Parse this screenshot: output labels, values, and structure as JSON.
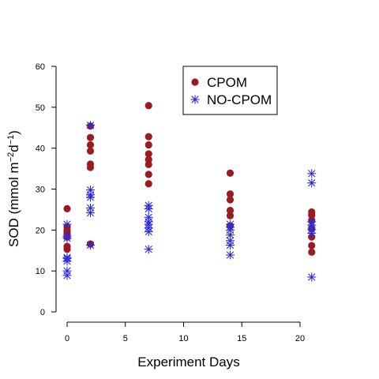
{
  "chart_data": {
    "type": "scatter",
    "title": "",
    "xlabel": "Experiment Days",
    "ylabel": {
      "prefix": "SOD (mmol m",
      "sup1": "−2",
      "mid": "d",
      "sup2": "−1",
      "suffix": ")"
    },
    "xlim": [
      0,
      20
    ],
    "ylim": [
      0,
      60
    ],
    "xticks": [
      0,
      5,
      10,
      15,
      20
    ],
    "yticks": [
      0,
      10,
      20,
      30,
      40,
      50,
      60
    ],
    "grid": false,
    "legend_position": "top-right",
    "series": [
      {
        "name": "CPOM",
        "marker": "filled-circle",
        "color": "#9b1b20",
        "points": [
          [
            0,
            25.2
          ],
          [
            0,
            20.8
          ],
          [
            0,
            20.0
          ],
          [
            0,
            19.6
          ],
          [
            0,
            19.0
          ],
          [
            0,
            18.3
          ],
          [
            0,
            16.0
          ],
          [
            0,
            15.3
          ],
          [
            2,
            45.4
          ],
          [
            2,
            42.6
          ],
          [
            2,
            40.8
          ],
          [
            2,
            39.3
          ],
          [
            2,
            36.1
          ],
          [
            2,
            35.3
          ],
          [
            2,
            16.6
          ],
          [
            7,
            50.4
          ],
          [
            7,
            42.8
          ],
          [
            7,
            40.8
          ],
          [
            7,
            38.6
          ],
          [
            7,
            37.2
          ],
          [
            7,
            36.0
          ],
          [
            7,
            33.6
          ],
          [
            7,
            31.3
          ],
          [
            14,
            33.9
          ],
          [
            14,
            28.8
          ],
          [
            14,
            27.4
          ],
          [
            14,
            24.8
          ],
          [
            14,
            23.5
          ],
          [
            14,
            21.0
          ],
          [
            21,
            24.4
          ],
          [
            21,
            23.6
          ],
          [
            21,
            22.3
          ],
          [
            21,
            20.4
          ],
          [
            21,
            18.3
          ],
          [
            21,
            16.2
          ],
          [
            21,
            14.6
          ]
        ]
      },
      {
        "name": "NO-CPOM",
        "marker": "asterisk",
        "color": "#2b2bdc",
        "points": [
          [
            0,
            21.4
          ],
          [
            0,
            18.5
          ],
          [
            0,
            18.0
          ],
          [
            0,
            13.3
          ],
          [
            0,
            13.0
          ],
          [
            0,
            12.4
          ],
          [
            0,
            10.0
          ],
          [
            0,
            8.9
          ],
          [
            2,
            45.6
          ],
          [
            2,
            29.8
          ],
          [
            2,
            28.6
          ],
          [
            2,
            28.0
          ],
          [
            2,
            25.4
          ],
          [
            2,
            24.2
          ],
          [
            2,
            16.3
          ],
          [
            7,
            26.0
          ],
          [
            7,
            25.2
          ],
          [
            7,
            23.1
          ],
          [
            7,
            22.0
          ],
          [
            7,
            21.4
          ],
          [
            7,
            20.5
          ],
          [
            7,
            19.6
          ],
          [
            7,
            15.3
          ],
          [
            14,
            21.4
          ],
          [
            14,
            20.7
          ],
          [
            14,
            20.0
          ],
          [
            14,
            18.8
          ],
          [
            14,
            17.4
          ],
          [
            14,
            16.3
          ],
          [
            14,
            13.9
          ],
          [
            21,
            33.8
          ],
          [
            21,
            31.5
          ],
          [
            21,
            22.0
          ],
          [
            21,
            21.2
          ],
          [
            21,
            20.1
          ],
          [
            21,
            19.2
          ],
          [
            21,
            8.5
          ]
        ]
      }
    ]
  }
}
